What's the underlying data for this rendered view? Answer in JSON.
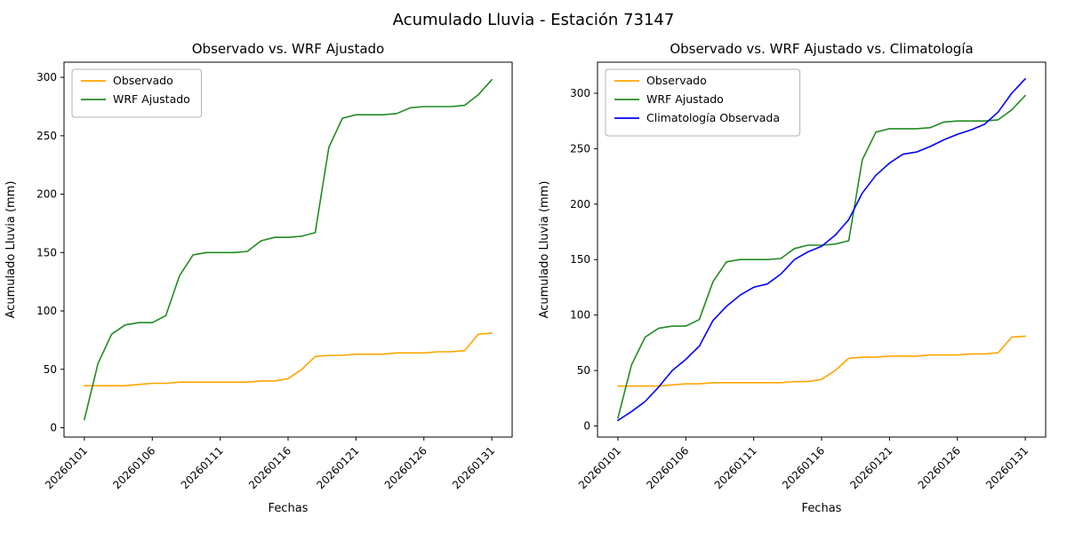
{
  "figure_title": "Acumulado Lluvia - Estación 73147",
  "chart_data": [
    {
      "type": "line",
      "title": "Observado vs. WRF Ajustado",
      "xlabel": "Fechas",
      "ylabel": "Acumulado Lluvia (mm)",
      "grid": false,
      "legend_position": "upper left",
      "x": [
        "20260101",
        "20260102",
        "20260103",
        "20260104",
        "20260105",
        "20260106",
        "20260107",
        "20260108",
        "20260109",
        "20260110",
        "20260111",
        "20260112",
        "20260113",
        "20260114",
        "20260115",
        "20260116",
        "20260117",
        "20260118",
        "20260119",
        "20260120",
        "20260121",
        "20260122",
        "20260123",
        "20260124",
        "20260125",
        "20260126",
        "20260127",
        "20260128",
        "20260129",
        "20260130",
        "20260131"
      ],
      "xticks": [
        "20260101",
        "20260106",
        "20260111",
        "20260116",
        "20260121",
        "20260126",
        "20260131"
      ],
      "yticks": [
        0,
        50,
        100,
        150,
        200,
        250,
        300
      ],
      "ylim": [
        -8,
        313
      ],
      "series": [
        {
          "name": "Observado",
          "color": "#ffa500",
          "values": [
            36,
            36,
            36,
            36,
            37,
            38,
            38,
            39,
            39,
            39,
            39,
            39,
            39,
            40,
            40,
            42,
            50,
            61,
            62,
            62,
            63,
            63,
            63,
            64,
            64,
            64,
            65,
            65,
            66,
            80,
            81
          ]
        },
        {
          "name": "WRF Ajustado",
          "color": "#228b22",
          "values": [
            7,
            55,
            80,
            88,
            90,
            90,
            96,
            130,
            148,
            150,
            150,
            150,
            151,
            160,
            163,
            163,
            164,
            167,
            240,
            265,
            268,
            268,
            268,
            269,
            274,
            275,
            275,
            275,
            276,
            285,
            298
          ]
        }
      ]
    },
    {
      "type": "line",
      "title": "Observado vs. WRF Ajustado vs. Climatología",
      "xlabel": "Fechas",
      "ylabel": "Acumulado Lluvia (mm)",
      "grid": false,
      "legend_position": "upper left",
      "x": [
        "20260101",
        "20260102",
        "20260103",
        "20260104",
        "20260105",
        "20260106",
        "20260107",
        "20260108",
        "20260109",
        "20260110",
        "20260111",
        "20260112",
        "20260113",
        "20260114",
        "20260115",
        "20260116",
        "20260117",
        "20260118",
        "20260119",
        "20260120",
        "20260121",
        "20260122",
        "20260123",
        "20260124",
        "20260125",
        "20260126",
        "20260127",
        "20260128",
        "20260129",
        "20260130",
        "20260131"
      ],
      "xticks": [
        "20260101",
        "20260106",
        "20260111",
        "20260116",
        "20260121",
        "20260126",
        "20260131"
      ],
      "yticks": [
        0,
        50,
        100,
        150,
        200,
        250,
        300
      ],
      "ylim": [
        -10,
        328
      ],
      "series": [
        {
          "name": "Observado",
          "color": "#ffa500",
          "values": [
            36,
            36,
            36,
            36,
            37,
            38,
            38,
            39,
            39,
            39,
            39,
            39,
            39,
            40,
            40,
            42,
            50,
            61,
            62,
            62,
            63,
            63,
            63,
            64,
            64,
            64,
            65,
            65,
            66,
            80,
            81
          ]
        },
        {
          "name": "WRF Ajustado",
          "color": "#228b22",
          "values": [
            7,
            55,
            80,
            88,
            90,
            90,
            96,
            130,
            148,
            150,
            150,
            150,
            151,
            160,
            163,
            163,
            164,
            167,
            240,
            265,
            268,
            268,
            268,
            269,
            274,
            275,
            275,
            275,
            276,
            285,
            298
          ]
        },
        {
          "name": "Climatología Observada",
          "color": "#0000ff",
          "values": [
            5,
            13,
            22,
            35,
            50,
            60,
            72,
            95,
            108,
            118,
            125,
            128,
            137,
            150,
            157,
            162,
            172,
            186,
            210,
            226,
            237,
            245,
            247,
            252,
            258,
            263,
            267,
            272,
            283,
            300,
            313
          ]
        }
      ]
    }
  ]
}
